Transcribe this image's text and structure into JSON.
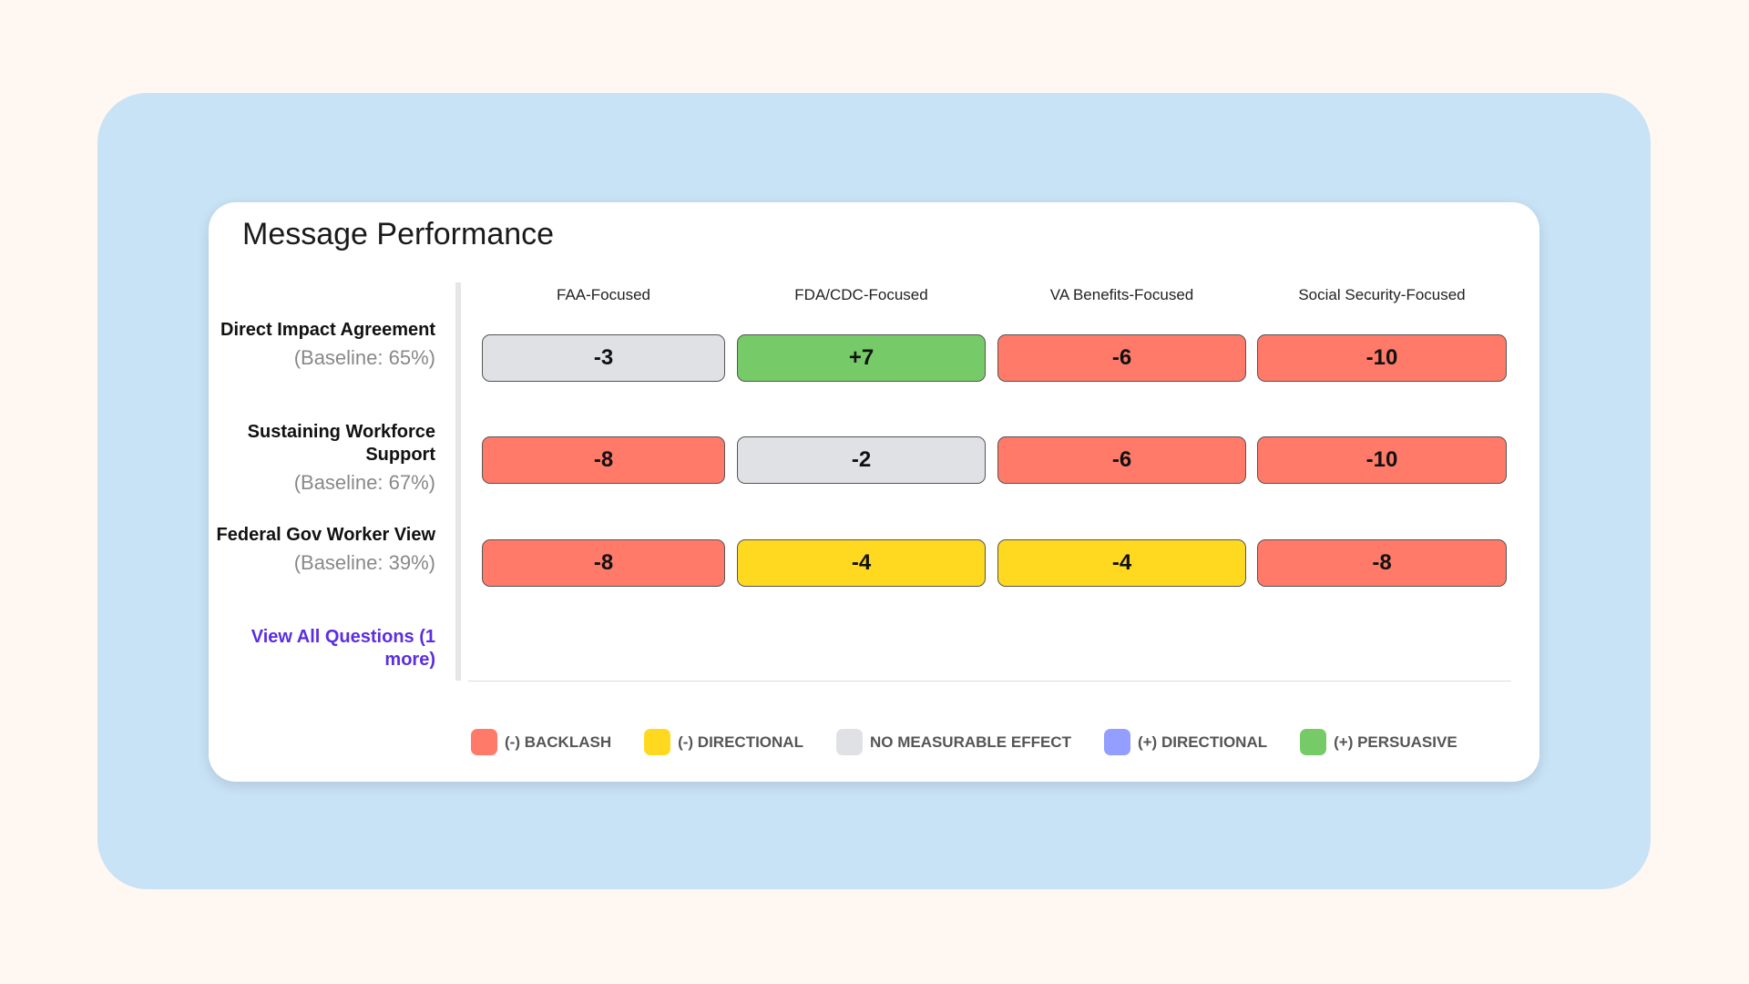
{
  "title": "Message Performance",
  "columns": [
    "FAA-Focused",
    "FDA/CDC-Focused",
    "VA Benefits-Focused",
    "Social Security-Focused"
  ],
  "rows": [
    {
      "name": "Direct Impact Agreement",
      "baseline": "(Baseline: 65%)",
      "values": [
        "-3",
        "+7",
        "-6",
        "-10"
      ],
      "categories": [
        "none",
        "pos",
        "back",
        "back"
      ]
    },
    {
      "name": "Sustaining Workforce Support",
      "baseline": "(Baseline: 67%)",
      "values": [
        "-8",
        "-2",
        "-6",
        "-10"
      ],
      "categories": [
        "back",
        "none",
        "back",
        "back"
      ]
    },
    {
      "name": "Federal Gov Worker View",
      "baseline": "(Baseline: 39%)",
      "values": [
        "-8",
        "-4",
        "-4",
        "-8"
      ],
      "categories": [
        "back",
        "negdir",
        "negdir",
        "back"
      ]
    }
  ],
  "view_all": "View All Questions (1 more)",
  "legend": [
    {
      "label": "(-) BACKLASH",
      "key": "back",
      "color": "#ff7a68"
    },
    {
      "label": "(-) DIRECTIONAL",
      "key": "negdir",
      "color": "#ffd91f"
    },
    {
      "label": "NO MEASURABLE EFFECT",
      "key": "none",
      "color": "#e0e1e5"
    },
    {
      "label": "(+) DIRECTIONAL",
      "key": "posdir",
      "color": "#949efe"
    },
    {
      "label": "(+) PERSUASIVE",
      "key": "pos",
      "color": "#76cb68"
    }
  ]
}
